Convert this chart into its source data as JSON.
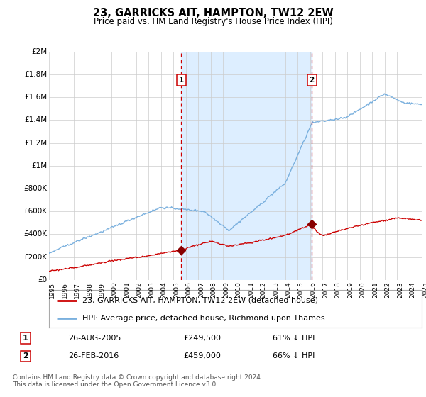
{
  "title": "23, GARRICKS AIT, HAMPTON, TW12 2EW",
  "subtitle": "Price paid vs. HM Land Registry's House Price Index (HPI)",
  "ylim": [
    0,
    2000000
  ],
  "yticks": [
    0,
    200000,
    400000,
    600000,
    800000,
    1000000,
    1200000,
    1400000,
    1600000,
    1800000,
    2000000
  ],
  "ytick_labels": [
    "£0",
    "£200K",
    "£400K",
    "£600K",
    "£800K",
    "£1M",
    "£1.2M",
    "£1.4M",
    "£1.6M",
    "£1.8M",
    "£2M"
  ],
  "hpi_color": "#7ab0de",
  "price_color": "#cc0000",
  "shade_color": "#ddeeff",
  "vline_color": "#cc0000",
  "grid_color": "#cccccc",
  "bg_color": "#ffffff",
  "marker_color": "#880000",
  "sale1_year": 2005.65,
  "sale1_price": 249500,
  "sale2_year": 2016.15,
  "sale2_price": 459000,
  "legend_line1": "23, GARRICKS AIT, HAMPTON, TW12 2EW (detached house)",
  "legend_line2": "HPI: Average price, detached house, Richmond upon Thames",
  "table_row1": [
    "1",
    "26-AUG-2005",
    "£249,500",
    "61% ↓ HPI"
  ],
  "table_row2": [
    "2",
    "26-FEB-2016",
    "£459,000",
    "66% ↓ HPI"
  ],
  "footnote": "Contains HM Land Registry data © Crown copyright and database right 2024.\nThis data is licensed under the Open Government Licence v3.0.",
  "start_year": 1995.0,
  "end_year": 2025.0
}
